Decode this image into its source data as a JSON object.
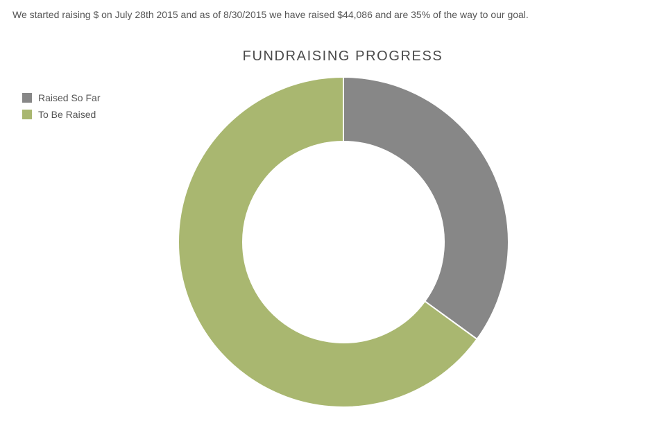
{
  "intro_text": "We started raising $ on July 28th 2015 and as of 8/30/2015 we have raised $44,086 and are 35% of the way to our goal.",
  "chart_data": {
    "type": "pie",
    "donut": true,
    "title": "FUNDRAISING PROGRESS",
    "legend_placement": "top-left",
    "slices": [
      {
        "label": "Raised So Far",
        "value": 35,
        "color": "#878787"
      },
      {
        "label": "To Be Raised",
        "value": 65,
        "color": "#a9b770"
      }
    ]
  }
}
